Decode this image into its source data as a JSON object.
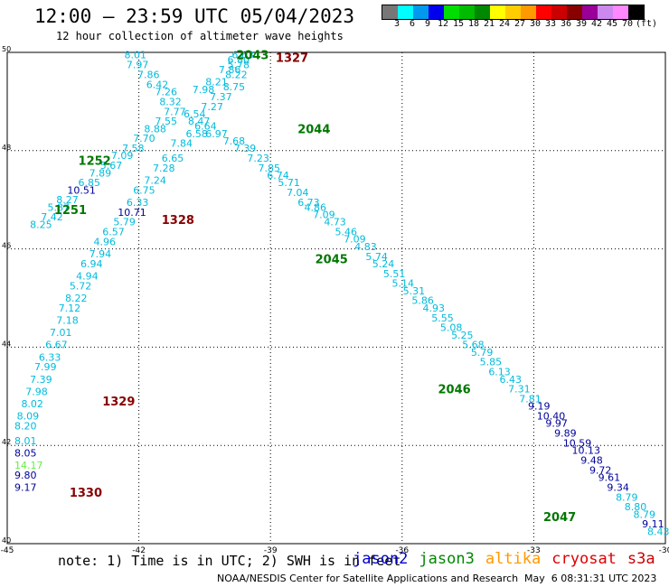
{
  "title": "12:00 – 23:59 UTC 05/04/2023",
  "subtitle": "12 hour collection of altimeter wave heights",
  "colorbar": {
    "unit": "(ft)",
    "colors": [
      "#777777",
      "#00ffff",
      "#0099ee",
      "#0000ee",
      "#00dd00",
      "#00bb00",
      "#008800",
      "#ffff00",
      "#ffcc00",
      "#ff9900",
      "#ff0000",
      "#cc0000",
      "#880000",
      "#990099",
      "#cc88ee",
      "#ff88ff",
      "#000000"
    ],
    "labels": [
      "3",
      "6",
      "9",
      "12",
      "15",
      "18",
      "21",
      "24",
      "27",
      "30",
      "33",
      "36",
      "39",
      "42",
      "45",
      "70"
    ]
  },
  "axes": {
    "x_ticks": [
      "-45",
      "-42",
      "-39",
      "-36",
      "-33",
      "-30"
    ],
    "y_ticks": [
      "50",
      "48",
      "46",
      "44",
      "42",
      "40"
    ]
  },
  "colors": {
    "cyan": "#00bbdd",
    "teal": "#22aacc",
    "navy": "#000099",
    "green": "#007700",
    "maroon": "#880000",
    "light_green": "#66ee44"
  },
  "tracks": [
    {
      "label": "2043",
      "lon": -40.4,
      "lat": 49.95,
      "color": "green"
    },
    {
      "label": "1327",
      "lon": -39.5,
      "lat": 49.9,
      "color": "maroon"
    },
    {
      "label": "2044",
      "lon": -39.0,
      "lat": 48.45,
      "color": "green"
    },
    {
      "label": "1252",
      "lon": -44.0,
      "lat": 47.8,
      "color": "green"
    },
    {
      "label": "1251",
      "lon": -44.55,
      "lat": 46.8,
      "color": "green"
    },
    {
      "label": "1328",
      "lon": -42.1,
      "lat": 46.6,
      "color": "maroon"
    },
    {
      "label": "2045",
      "lon": -38.6,
      "lat": 45.8,
      "color": "green"
    },
    {
      "label": "2046",
      "lon": -35.8,
      "lat": 43.15,
      "color": "green"
    },
    {
      "label": "1329",
      "lon": -43.45,
      "lat": 42.9,
      "color": "maroon"
    },
    {
      "label": "1330",
      "lon": -44.2,
      "lat": 41.05,
      "color": "maroon"
    },
    {
      "label": "2047",
      "lon": -33.4,
      "lat": 40.55,
      "color": "green"
    }
  ],
  "points": [
    {
      "v": "8.01",
      "lon": -42.95,
      "lat": 49.95,
      "c": "cyan"
    },
    {
      "v": "7.97",
      "lon": -42.9,
      "lat": 49.75,
      "c": "cyan"
    },
    {
      "v": "7.86",
      "lon": -42.65,
      "lat": 49.55,
      "c": "cyan"
    },
    {
      "v": "6.42",
      "lon": -42.45,
      "lat": 49.35,
      "c": "cyan"
    },
    {
      "v": "7.26",
      "lon": -42.25,
      "lat": 49.2,
      "c": "cyan"
    },
    {
      "v": "8.32",
      "lon": -42.15,
      "lat": 49.0,
      "c": "cyan"
    },
    {
      "v": "7.77",
      "lon": -42.05,
      "lat": 48.8,
      "c": "cyan"
    },
    {
      "v": "7.55",
      "lon": -42.25,
      "lat": 48.6,
      "c": "cyan"
    },
    {
      "v": "8.88",
      "lon": -42.5,
      "lat": 48.45,
      "c": "cyan"
    },
    {
      "v": "7.70",
      "lon": -42.75,
      "lat": 48.25,
      "c": "cyan"
    },
    {
      "v": "7.58",
      "lon": -43.0,
      "lat": 48.05,
      "c": "cyan"
    },
    {
      "v": "7.09",
      "lon": -43.25,
      "lat": 47.9,
      "c": "cyan"
    },
    {
      "v": "5.67",
      "lon": -43.5,
      "lat": 47.7,
      "c": "cyan"
    },
    {
      "v": "7.89",
      "lon": -43.75,
      "lat": 47.55,
      "c": "cyan"
    },
    {
      "v": "6.85",
      "lon": -44.0,
      "lat": 47.35,
      "c": "cyan"
    },
    {
      "v": "10.51",
      "lon": -44.25,
      "lat": 47.2,
      "c": "navy"
    },
    {
      "v": "8.27",
      "lon": -44.5,
      "lat": 47.0,
      "c": "cyan"
    },
    {
      "v": "5.87",
      "lon": -44.7,
      "lat": 46.85,
      "c": "cyan"
    },
    {
      "v": "7.42",
      "lon": -44.85,
      "lat": 46.65,
      "c": "cyan"
    },
    {
      "v": "8.25",
      "lon": -45.1,
      "lat": 46.5,
      "c": "cyan"
    },
    {
      "v": "6.63",
      "lon": -40.5,
      "lat": 49.95,
      "c": "cyan"
    },
    {
      "v": "6.80",
      "lon": -40.6,
      "lat": 49.85,
      "c": "cyan"
    },
    {
      "v": "5.78",
      "lon": -40.6,
      "lat": 49.75,
      "c": "cyan"
    },
    {
      "v": "7.86",
      "lon": -40.8,
      "lat": 49.65,
      "c": "cyan"
    },
    {
      "v": "8.22",
      "lon": -40.65,
      "lat": 49.55,
      "c": "cyan"
    },
    {
      "v": "8.21",
      "lon": -41.1,
      "lat": 49.4,
      "c": "cyan"
    },
    {
      "v": "8.75",
      "lon": -40.7,
      "lat": 49.3,
      "c": "cyan"
    },
    {
      "v": "7.98",
      "lon": -41.4,
      "lat": 49.25,
      "c": "cyan"
    },
    {
      "v": "7.37",
      "lon": -41.0,
      "lat": 49.1,
      "c": "cyan"
    },
    {
      "v": "7.27",
      "lon": -41.2,
      "lat": 48.9,
      "c": "cyan"
    },
    {
      "v": "6.54",
      "lon": -41.6,
      "lat": 48.75,
      "c": "cyan"
    },
    {
      "v": "8.47",
      "lon": -41.5,
      "lat": 48.6,
      "c": "cyan"
    },
    {
      "v": "6.64",
      "lon": -41.35,
      "lat": 48.5,
      "c": "cyan"
    },
    {
      "v": "6.58",
      "lon": -41.55,
      "lat": 48.35,
      "c": "cyan"
    },
    {
      "v": "6.97",
      "lon": -41.1,
      "lat": 48.35,
      "c": "cyan"
    },
    {
      "v": "7.68",
      "lon": -40.7,
      "lat": 48.2,
      "c": "cyan"
    },
    {
      "v": "7.84",
      "lon": -41.9,
      "lat": 48.15,
      "c": "cyan"
    },
    {
      "v": "7.39",
      "lon": -40.45,
      "lat": 48.05,
      "c": "cyan"
    },
    {
      "v": "6.65",
      "lon": -42.1,
      "lat": 47.85,
      "c": "cyan"
    },
    {
      "v": "7.23",
      "lon": -40.15,
      "lat": 47.85,
      "c": "cyan"
    },
    {
      "v": "7.28",
      "lon": -42.3,
      "lat": 47.65,
      "c": "cyan"
    },
    {
      "v": "7.85",
      "lon": -39.9,
      "lat": 47.65,
      "c": "cyan"
    },
    {
      "v": "6.74",
      "lon": -39.7,
      "lat": 47.5,
      "c": "cyan"
    },
    {
      "v": "7.24",
      "lon": -42.5,
      "lat": 47.4,
      "c": "cyan"
    },
    {
      "v": "5.71",
      "lon": -39.45,
      "lat": 47.35,
      "c": "cyan"
    },
    {
      "v": "6.75",
      "lon": -42.75,
      "lat": 47.2,
      "c": "cyan"
    },
    {
      "v": "7.04",
      "lon": -39.25,
      "lat": 47.15,
      "c": "cyan"
    },
    {
      "v": "6.33",
      "lon": -42.9,
      "lat": 46.95,
      "c": "cyan"
    },
    {
      "v": "6.73",
      "lon": -39.0,
      "lat": 46.95,
      "c": "cyan"
    },
    {
      "v": "10.71",
      "lon": -43.1,
      "lat": 46.75,
      "c": "navy"
    },
    {
      "v": "4.86",
      "lon": -38.85,
      "lat": 46.85,
      "c": "cyan"
    },
    {
      "v": "7.09",
      "lon": -38.65,
      "lat": 46.7,
      "c": "cyan"
    },
    {
      "v": "5.79",
      "lon": -43.2,
      "lat": 46.55,
      "c": "cyan"
    },
    {
      "v": "4.73",
      "lon": -38.4,
      "lat": 46.55,
      "c": "cyan"
    },
    {
      "v": "6.57",
      "lon": -43.45,
      "lat": 46.35,
      "c": "cyan"
    },
    {
      "v": "5.46",
      "lon": -38.15,
      "lat": 46.35,
      "c": "cyan"
    },
    {
      "v": "7.09",
      "lon": -37.95,
      "lat": 46.2,
      "c": "cyan"
    },
    {
      "v": "4.96",
      "lon": -43.65,
      "lat": 46.15,
      "c": "cyan"
    },
    {
      "v": "4.83",
      "lon": -37.7,
      "lat": 46.05,
      "c": "cyan"
    },
    {
      "v": "7.94",
      "lon": -43.75,
      "lat": 45.9,
      "c": "cyan"
    },
    {
      "v": "5.74",
      "lon": -37.45,
      "lat": 45.85,
      "c": "cyan"
    },
    {
      "v": "6.94",
      "lon": -43.95,
      "lat": 45.7,
      "c": "cyan"
    },
    {
      "v": "5.24",
      "lon": -37.3,
      "lat": 45.7,
      "c": "cyan"
    },
    {
      "v": "4.94",
      "lon": -44.05,
      "lat": 45.45,
      "c": "cyan"
    },
    {
      "v": "5.51",
      "lon": -37.05,
      "lat": 45.5,
      "c": "cyan"
    },
    {
      "v": "5.14",
      "lon": -36.85,
      "lat": 45.3,
      "c": "cyan"
    },
    {
      "v": "5.72",
      "lon": -44.2,
      "lat": 45.25,
      "c": "cyan"
    },
    {
      "v": "5.31",
      "lon": -36.6,
      "lat": 45.15,
      "c": "cyan"
    },
    {
      "v": "8.22",
      "lon": -44.3,
      "lat": 45.0,
      "c": "cyan"
    },
    {
      "v": "5.86",
      "lon": -36.4,
      "lat": 44.95,
      "c": "cyan"
    },
    {
      "v": "7.12",
      "lon": -44.45,
      "lat": 44.8,
      "c": "cyan"
    },
    {
      "v": "4.93",
      "lon": -36.15,
      "lat": 44.8,
      "c": "cyan"
    },
    {
      "v": "7.18",
      "lon": -44.5,
      "lat": 44.55,
      "c": "cyan"
    },
    {
      "v": "5.55",
      "lon": -35.95,
      "lat": 44.6,
      "c": "cyan"
    },
    {
      "v": "5.08",
      "lon": -35.75,
      "lat": 44.4,
      "c": "cyan"
    },
    {
      "v": "7.01",
      "lon": -44.65,
      "lat": 44.3,
      "c": "cyan"
    },
    {
      "v": "5.25",
      "lon": -35.5,
      "lat": 44.25,
      "c": "cyan"
    },
    {
      "v": "6.67",
      "lon": -44.75,
      "lat": 44.05,
      "c": "cyan"
    },
    {
      "v": "5.68",
      "lon": -35.25,
      "lat": 44.05,
      "c": "cyan"
    },
    {
      "v": "5.79",
      "lon": -35.05,
      "lat": 43.9,
      "c": "cyan"
    },
    {
      "v": "6.33",
      "lon": -44.9,
      "lat": 43.8,
      "c": "cyan"
    },
    {
      "v": "5.85",
      "lon": -34.85,
      "lat": 43.7,
      "c": "cyan"
    },
    {
      "v": "7.99",
      "lon": -45.0,
      "lat": 43.6,
      "c": "cyan"
    },
    {
      "v": "6.13",
      "lon": -34.65,
      "lat": 43.5,
      "c": "cyan"
    },
    {
      "v": "7.39",
      "lon": -45.1,
      "lat": 43.35,
      "c": "cyan"
    },
    {
      "v": "6.43",
      "lon": -34.4,
      "lat": 43.35,
      "c": "cyan"
    },
    {
      "v": "7.31",
      "lon": -34.2,
      "lat": 43.15,
      "c": "cyan"
    },
    {
      "v": "7.98",
      "lon": -45.2,
      "lat": 43.1,
      "c": "cyan"
    },
    {
      "v": "7.81",
      "lon": -33.95,
      "lat": 42.95,
      "c": "cyan"
    },
    {
      "v": "8.02",
      "lon": -45.3,
      "lat": 42.85,
      "c": "cyan"
    },
    {
      "v": "9.19",
      "lon": -33.75,
      "lat": 42.8,
      "c": "navy"
    },
    {
      "v": "8.09",
      "lon": -45.4,
      "lat": 42.6,
      "c": "cyan"
    },
    {
      "v": "10.40",
      "lon": -33.55,
      "lat": 42.6,
      "c": "navy"
    },
    {
      "v": "9.97",
      "lon": -33.35,
      "lat": 42.45,
      "c": "navy"
    },
    {
      "v": "8.20",
      "lon": -45.5,
      "lat": 42.4,
      "c": "cyan"
    },
    {
      "v": "9.89",
      "lon": -33.15,
      "lat": 42.25,
      "c": "navy"
    },
    {
      "v": "8.01",
      "lon": -45.6,
      "lat": 42.1,
      "c": "cyan"
    },
    {
      "v": "10.59",
      "lon": -32.95,
      "lat": 42.05,
      "c": "navy"
    },
    {
      "v": "8.05",
      "lon": -45.8,
      "lat": 41.85,
      "c": "navy"
    },
    {
      "v": "10.13",
      "lon": -32.75,
      "lat": 41.9,
      "c": "navy"
    },
    {
      "v": "14.17",
      "lon": -46.05,
      "lat": 41.6,
      "c": "light_green"
    },
    {
      "v": "9.48",
      "lon": -32.55,
      "lat": 41.7,
      "c": "navy"
    },
    {
      "v": "9.80",
      "lon": -46.0,
      "lat": 41.4,
      "c": "navy"
    },
    {
      "v": "9.72",
      "lon": -32.35,
      "lat": 41.5,
      "c": "navy"
    },
    {
      "v": "9.17",
      "lon": -46.15,
      "lat": 41.15,
      "c": "navy"
    },
    {
      "v": "9.61",
      "lon": -32.15,
      "lat": 41.35,
      "c": "navy"
    },
    {
      "v": "9.34",
      "lon": -31.95,
      "lat": 41.15,
      "c": "navy"
    },
    {
      "v": "8.79",
      "lon": -31.75,
      "lat": 40.95,
      "c": "cyan"
    },
    {
      "v": "8.80",
      "lon": -31.55,
      "lat": 40.75,
      "c": "cyan"
    },
    {
      "v": "8.79",
      "lon": -31.35,
      "lat": 40.6,
      "c": "cyan"
    },
    {
      "v": "9.11",
      "lon": -31.15,
      "lat": 40.4,
      "c": "navy"
    },
    {
      "v": "8.43",
      "lon": -30.95,
      "lat": 40.25,
      "c": "cyan"
    }
  ],
  "note": "note: 1) Time is in UTC; 2) SWH is in feet",
  "satellites": [
    {
      "name": "jason2",
      "color": "#0000cc"
    },
    {
      "name": "jason3",
      "color": "#008800"
    },
    {
      "name": "altika",
      "color": "#ff9900"
    },
    {
      "name": "cryosat",
      "color": "#dd0000"
    },
    {
      "name": "s3a",
      "color": "#cc0000"
    }
  ],
  "credit": "NOAA/NESDIS Center for Satellite Applications and Research",
  "timestamp": "May  6 08:31:31 UTC 2023"
}
